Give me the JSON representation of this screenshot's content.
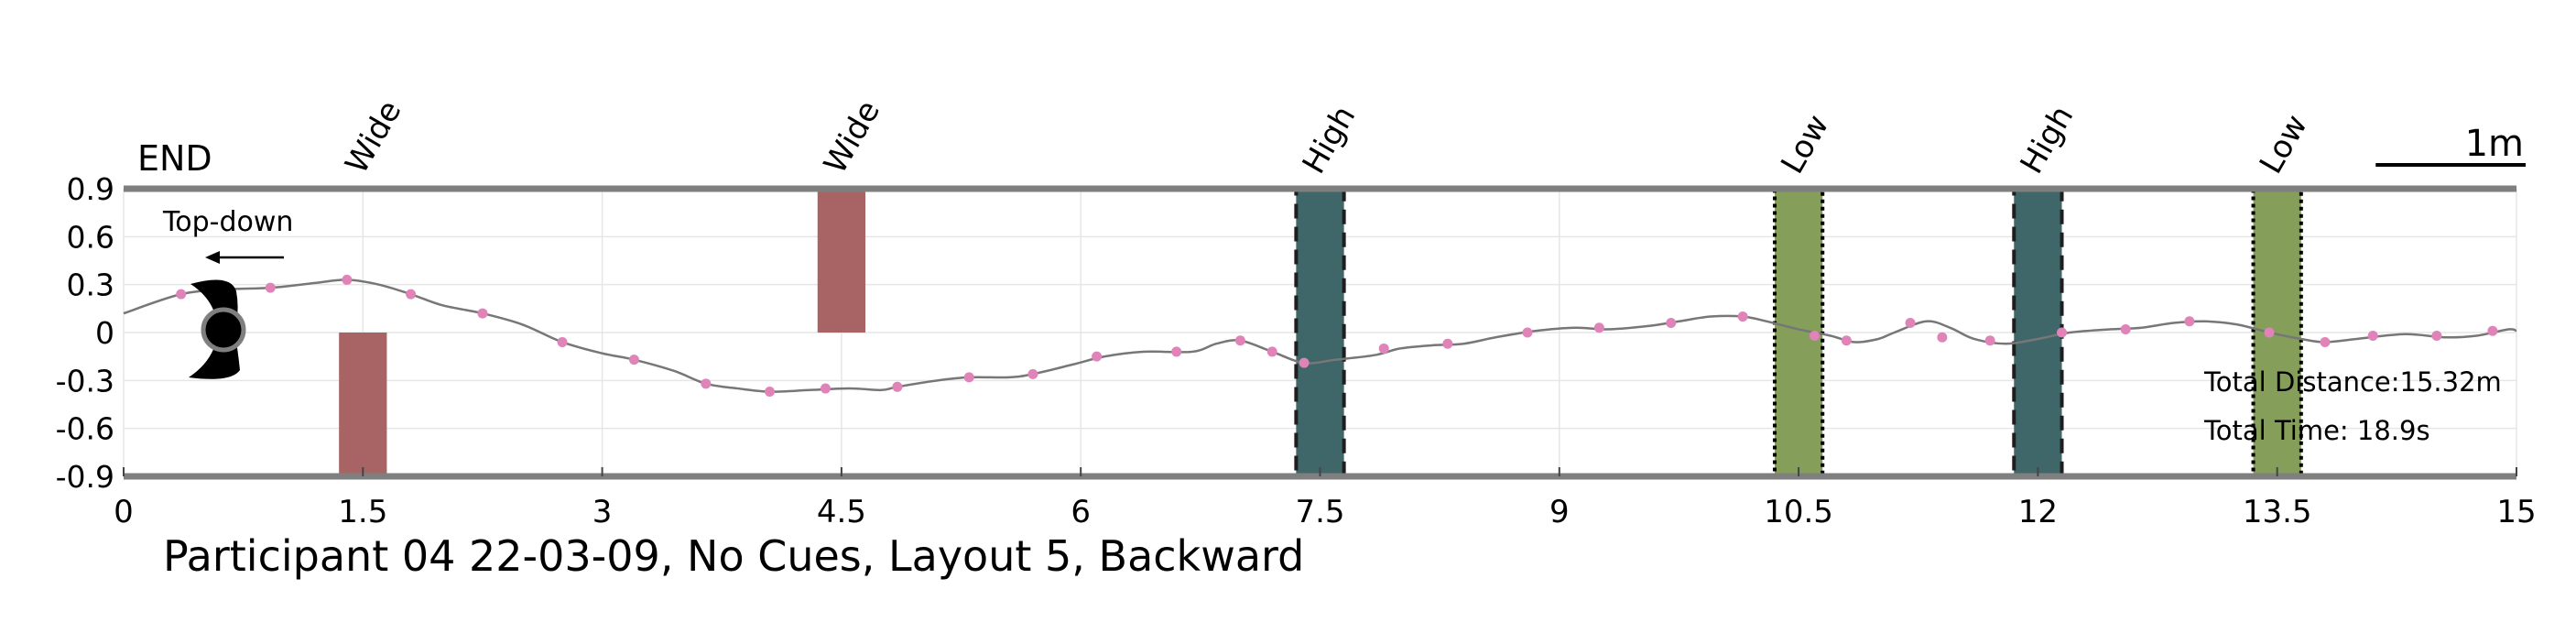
{
  "chart_data": {
    "type": "line",
    "title": "Participant 04 22-03-09, No Cues, Layout 5, Backward",
    "xlabel": "",
    "ylabel": "",
    "xlim": [
      0,
      15
    ],
    "ylim": [
      -0.9,
      0.9
    ],
    "x_ticks": [
      "0",
      "1.5",
      "3",
      "4.5",
      "6",
      "7.5",
      "9",
      "10.5",
      "12",
      "13.5",
      "15"
    ],
    "y_ticks": [
      "0.9",
      "0.6",
      "0.3",
      "0",
      "-0.3",
      "-0.6",
      "-0.9"
    ],
    "grid": true,
    "end_label": "END",
    "view_label": "Top-down",
    "scale_label": "1m",
    "scale_length": 1,
    "total_distance": "Total Distance:15.32m",
    "total_time": "Total Time: 18.9s",
    "series_color": "#777777",
    "marker_color": "#e083b8",
    "trajectory": [
      [
        0,
        0.12
      ],
      [
        0.36,
        0.24
      ],
      [
        0.65,
        0.27
      ],
      [
        0.92,
        0.28
      ],
      [
        1.2,
        0.31
      ],
      [
        1.4,
        0.33
      ],
      [
        1.6,
        0.3
      ],
      [
        1.8,
        0.24
      ],
      [
        2.0,
        0.17
      ],
      [
        2.25,
        0.12
      ],
      [
        2.5,
        0.05
      ],
      [
        2.75,
        -0.06
      ],
      [
        3.0,
        -0.13
      ],
      [
        3.2,
        -0.17
      ],
      [
        3.45,
        -0.24
      ],
      [
        3.65,
        -0.32
      ],
      [
        3.85,
        -0.35
      ],
      [
        4.05,
        -0.37
      ],
      [
        4.3,
        -0.36
      ],
      [
        4.55,
        -0.35
      ],
      [
        4.75,
        -0.36
      ],
      [
        4.85,
        -0.34
      ],
      [
        5.1,
        -0.3
      ],
      [
        5.3,
        -0.28
      ],
      [
        5.55,
        -0.28
      ],
      [
        5.7,
        -0.26
      ],
      [
        5.95,
        -0.2
      ],
      [
        6.15,
        -0.15
      ],
      [
        6.4,
        -0.12
      ],
      [
        6.7,
        -0.12
      ],
      [
        6.85,
        -0.07
      ],
      [
        7.0,
        -0.05
      ],
      [
        7.2,
        -0.12
      ],
      [
        7.4,
        -0.19
      ],
      [
        7.6,
        -0.17
      ],
      [
        7.85,
        -0.14
      ],
      [
        8.0,
        -0.1
      ],
      [
        8.2,
        -0.08
      ],
      [
        8.4,
        -0.07
      ],
      [
        8.6,
        -0.03
      ],
      [
        8.85,
        0.01
      ],
      [
        9.1,
        0.03
      ],
      [
        9.3,
        0.02
      ],
      [
        9.55,
        0.04
      ],
      [
        9.75,
        0.07
      ],
      [
        9.95,
        0.1
      ],
      [
        10.15,
        0.1
      ],
      [
        10.3,
        0.07
      ],
      [
        10.5,
        0.02
      ],
      [
        10.7,
        -0.02
      ],
      [
        10.85,
        -0.06
      ],
      [
        11.0,
        -0.04
      ],
      [
        11.1,
        0.0
      ],
      [
        11.3,
        0.07
      ],
      [
        11.45,
        0.03
      ],
      [
        11.6,
        -0.04
      ],
      [
        11.8,
        -0.07
      ],
      [
        12.0,
        -0.04
      ],
      [
        12.2,
        0.0
      ],
      [
        12.45,
        0.02
      ],
      [
        12.65,
        0.03
      ],
      [
        12.85,
        0.06
      ],
      [
        13.05,
        0.07
      ],
      [
        13.25,
        0.05
      ],
      [
        13.45,
        0.0
      ],
      [
        13.65,
        -0.04
      ],
      [
        13.8,
        -0.06
      ],
      [
        14.0,
        -0.04
      ],
      [
        14.3,
        -0.01
      ],
      [
        14.55,
        -0.03
      ],
      [
        14.75,
        -0.02
      ],
      [
        14.95,
        0.02
      ],
      [
        15.0,
        0.01
      ]
    ],
    "markers": [
      [
        0.36,
        0.24
      ],
      [
        0.92,
        0.28
      ],
      [
        1.4,
        0.33
      ],
      [
        1.8,
        0.24
      ],
      [
        2.25,
        0.12
      ],
      [
        2.75,
        -0.06
      ],
      [
        3.2,
        -0.17
      ],
      [
        3.65,
        -0.32
      ],
      [
        4.05,
        -0.37
      ],
      [
        4.4,
        -0.35
      ],
      [
        4.85,
        -0.34
      ],
      [
        5.3,
        -0.28
      ],
      [
        5.7,
        -0.26
      ],
      [
        6.1,
        -0.15
      ],
      [
        6.6,
        -0.12
      ],
      [
        7.0,
        -0.05
      ],
      [
        7.2,
        -0.12
      ],
      [
        7.4,
        -0.19
      ],
      [
        7.9,
        -0.1
      ],
      [
        8.3,
        -0.07
      ],
      [
        8.8,
        0.0
      ],
      [
        9.25,
        0.03
      ],
      [
        9.7,
        0.06
      ],
      [
        10.15,
        0.1
      ],
      [
        10.6,
        -0.02
      ],
      [
        10.8,
        -0.05
      ],
      [
        11.2,
        0.06
      ],
      [
        11.4,
        -0.03
      ],
      [
        11.7,
        -0.05
      ],
      [
        12.15,
        0.0
      ],
      [
        12.55,
        0.02
      ],
      [
        12.95,
        0.07
      ],
      [
        13.45,
        0.0
      ],
      [
        13.8,
        -0.06
      ],
      [
        14.1,
        -0.02
      ],
      [
        14.5,
        -0.02
      ],
      [
        14.85,
        0.01
      ]
    ],
    "obstacles": [
      {
        "label": "Wide",
        "x0": 1.35,
        "x1": 1.65,
        "y0": -0.9,
        "y1": 0.0,
        "fill": "#a86464",
        "edge": "none"
      },
      {
        "label": "Wide",
        "x0": 4.35,
        "x1": 4.65,
        "y0": 0.0,
        "y1": 0.9,
        "fill": "#a86464",
        "edge": "none"
      },
      {
        "label": "High",
        "x0": 7.35,
        "x1": 7.65,
        "y0": -0.9,
        "y1": 0.9,
        "fill": "#3f6668",
        "edge": "dashed"
      },
      {
        "label": "Low",
        "x0": 10.35,
        "x1": 10.65,
        "y0": -0.9,
        "y1": 0.9,
        "fill": "#859f5a",
        "edge": "dotted"
      },
      {
        "label": "High",
        "x0": 11.85,
        "x1": 12.15,
        "y0": -0.9,
        "y1": 0.9,
        "fill": "#3f6668",
        "edge": "dashed"
      },
      {
        "label": "Low",
        "x0": 13.35,
        "x1": 13.65,
        "y0": -0.9,
        "y1": 0.9,
        "fill": "#859f5a",
        "edge": "dotted"
      }
    ]
  }
}
